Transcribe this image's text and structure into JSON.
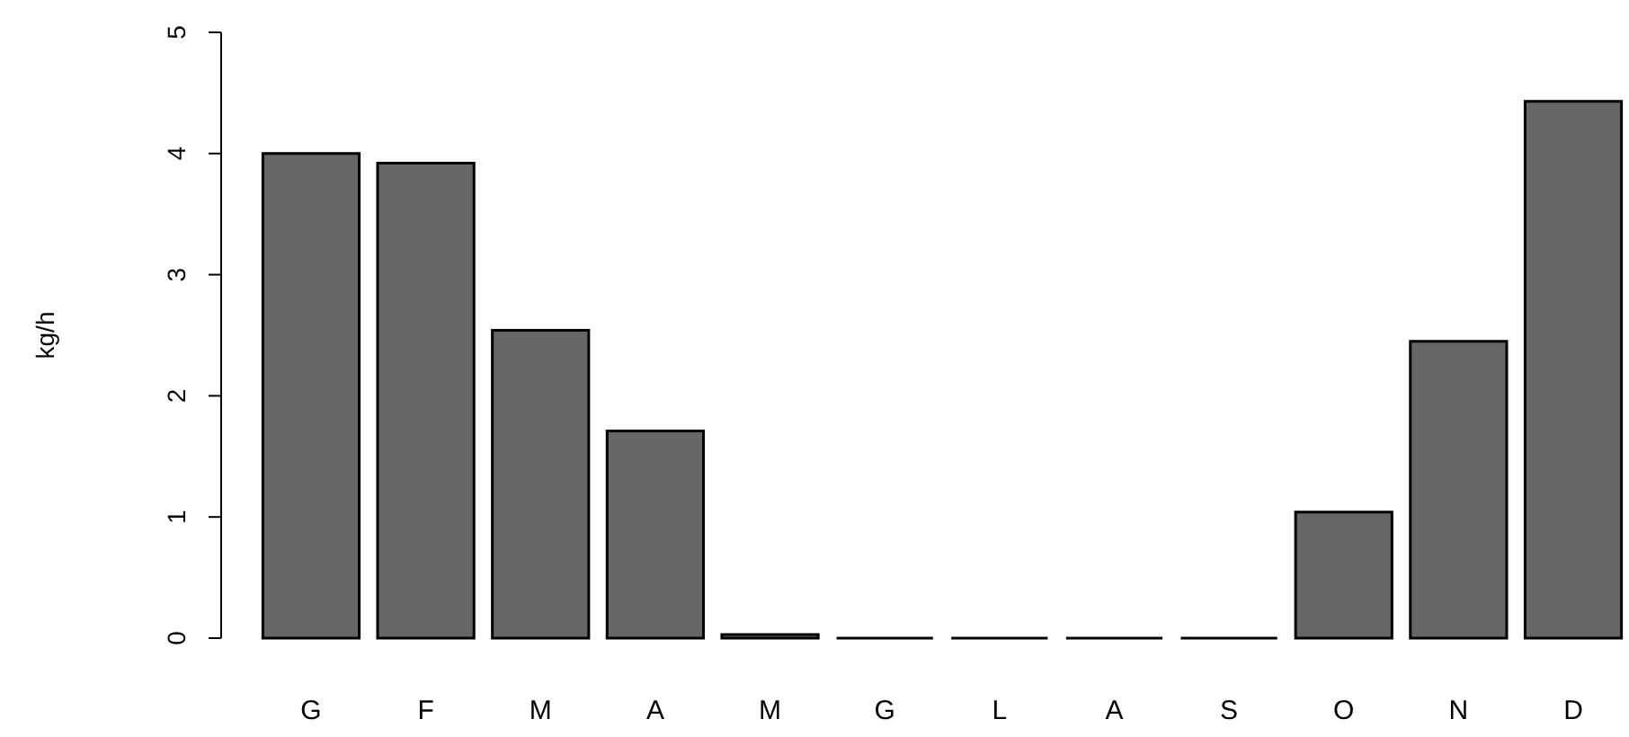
{
  "chart_data": {
    "type": "bar",
    "ylabel": "kg/h",
    "categories": [
      "G",
      "F",
      "M",
      "A",
      "M",
      "G",
      "L",
      "A",
      "S",
      "O",
      "N",
      "D"
    ],
    "values": [
      4.0,
      3.92,
      2.54,
      1.71,
      0.03,
      0,
      0,
      0,
      0,
      1.04,
      2.45,
      4.43
    ],
    "color": "#666666",
    "ylim": [
      0,
      5
    ],
    "yticks": [
      0,
      1,
      2,
      3,
      4,
      5
    ],
    "grid": false
  }
}
